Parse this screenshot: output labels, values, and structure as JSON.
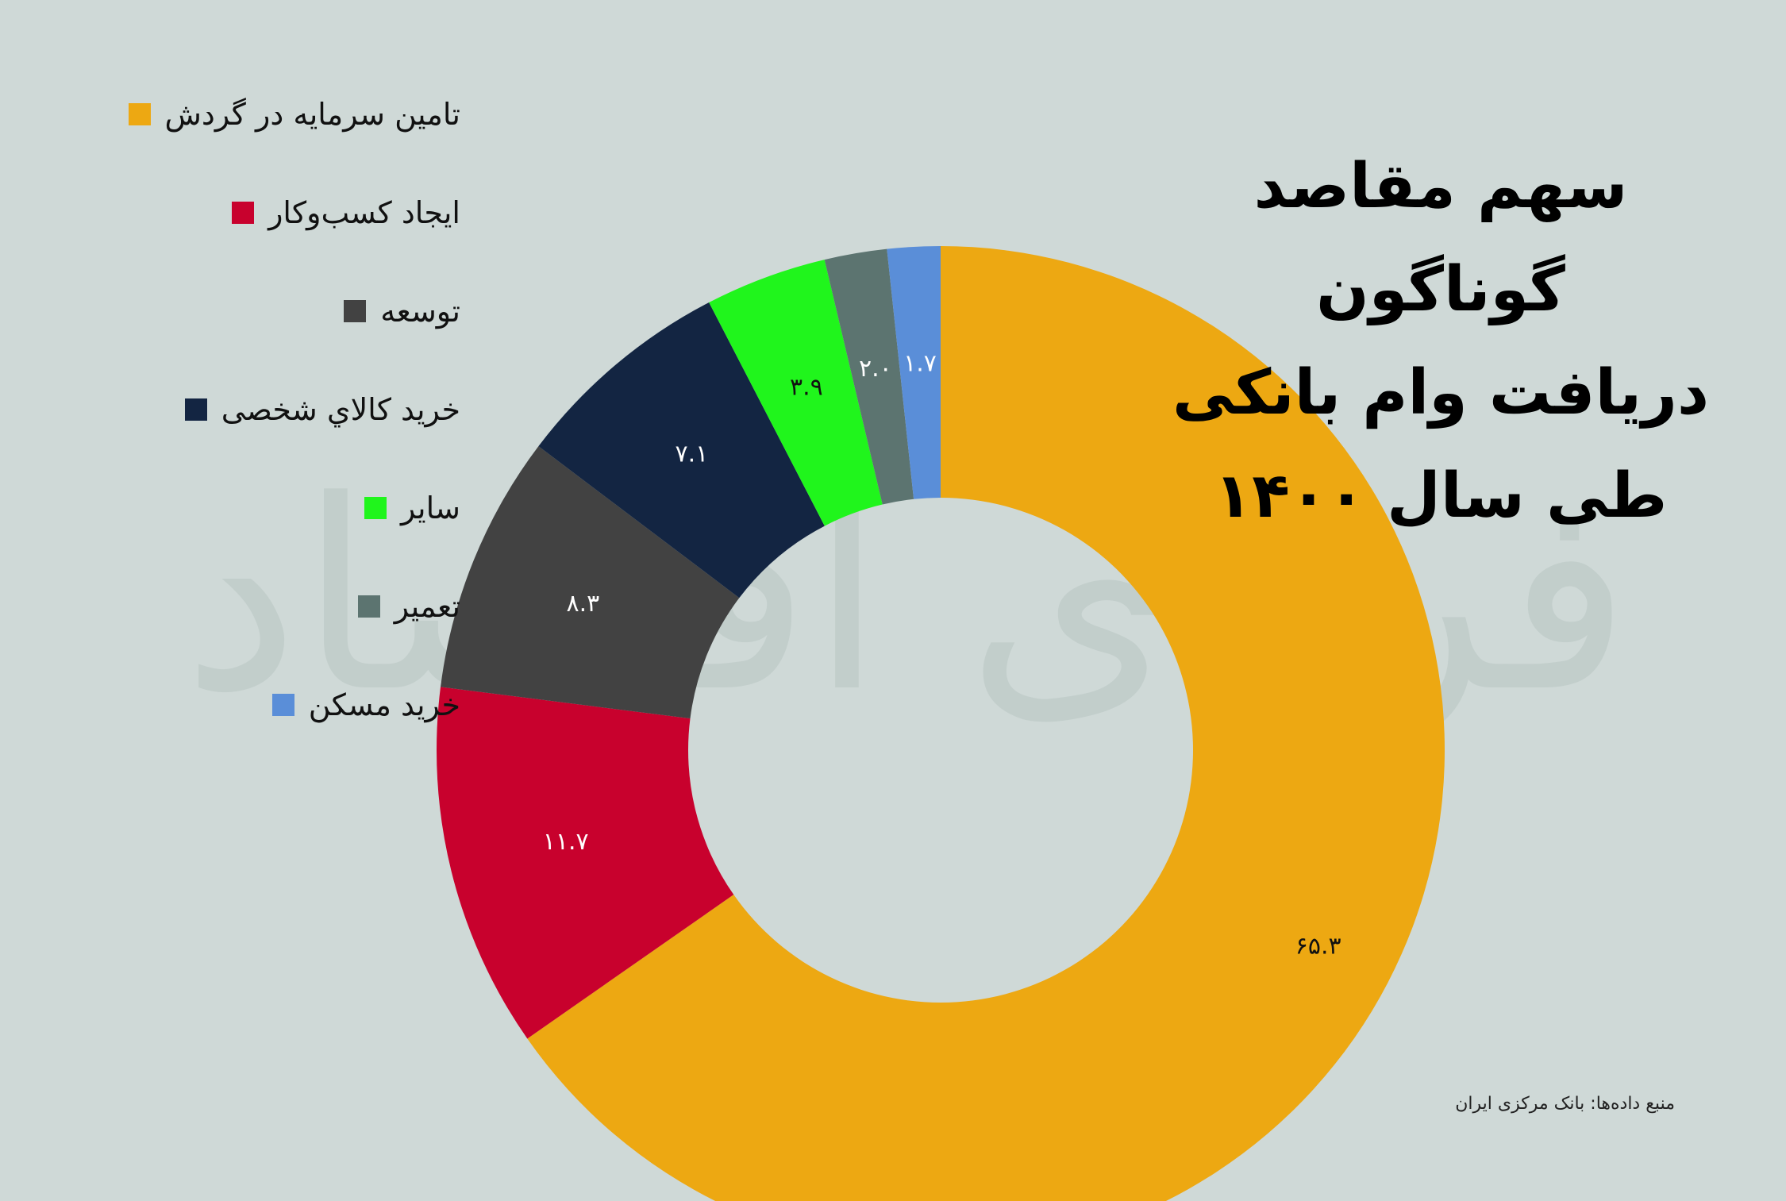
{
  "title_lines": [
    "سهم مقاصد گوناگون",
    "دریافت وام بانکی",
    "طی سال ۱۴۰۰"
  ],
  "source": "منبع داده‌ها: بانک مرکزی ایران",
  "watermark": "فردای اقتصاد",
  "chart_data": {
    "type": "pie",
    "donut": true,
    "categories": [
      "تامین سرمایه در گردش",
      "ایجاد کسب‌وکار",
      "توسعه",
      "خرید کالاي شخصی",
      "سایر",
      "تعمیر",
      "خرید مسکن"
    ],
    "values": [
      65.3,
      11.7,
      8.3,
      7.1,
      3.9,
      2.0,
      1.7
    ],
    "value_labels": [
      "۶۵.۳",
      "۱۱.۷",
      "۸.۳",
      "۷.۱",
      "۳.۹",
      "۲.۰",
      "۱.۷"
    ],
    "colors": [
      "#eda812",
      "#c8012d",
      "#424242",
      "#132542",
      "#20f51c",
      "#5c7470",
      "#5a8ed8"
    ],
    "label_colors": [
      "#111111",
      "#ffffff",
      "#ffffff",
      "#ffffff",
      "#111111",
      "#ffffff",
      "#ffffff"
    ],
    "start_angle": "top",
    "direction": "clockwise",
    "legend_position": "left"
  }
}
